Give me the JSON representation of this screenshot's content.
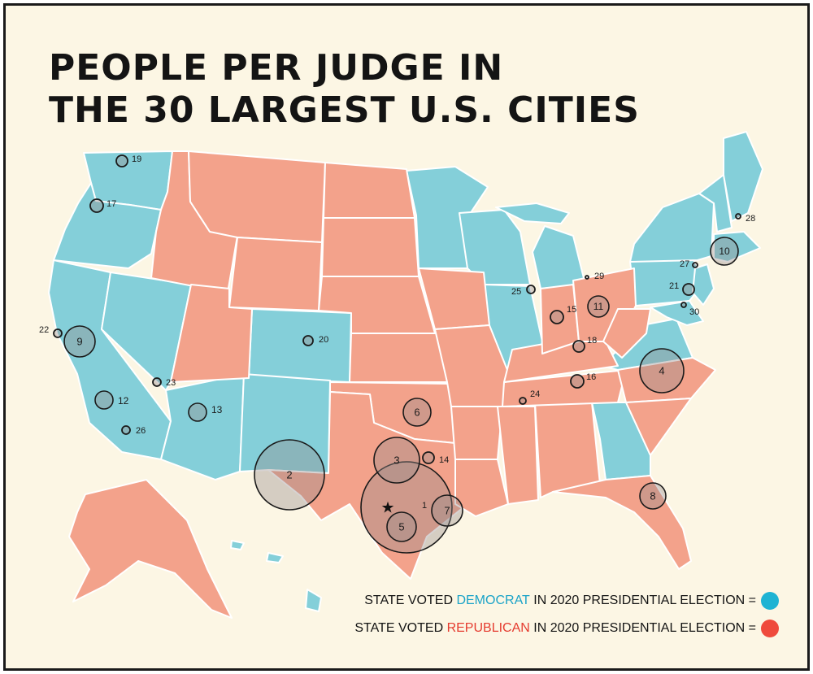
{
  "title": {
    "line1": "PEOPLE PER JUDGE IN",
    "line2": "THE 30 LARGEST U.S. CITIES"
  },
  "colors": {
    "democrat": "#84cfd9",
    "republican": "#f3a28b",
    "democrat_dot": "#1fb3d3",
    "republican_dot": "#ef4a3c",
    "democrat_text": "#1aa3c8",
    "republican_text": "#e53b2f"
  },
  "legend": {
    "democrat": {
      "prefix": "STATE VOTED ",
      "party": "DEMOCRAT",
      "suffix": " IN 2020 PRESIDENTIAL ELECTION ="
    },
    "republican": {
      "prefix": "STATE VOTED ",
      "party": "REPUBLICAN",
      "suffix": " IN 2020 PRESIDENTIAL ELECTION ="
    }
  },
  "cities": [
    {
      "rank": "1",
      "party": "republican",
      "star": true
    },
    {
      "rank": "2",
      "party": "republican"
    },
    {
      "rank": "3",
      "party": "republican"
    },
    {
      "rank": "4",
      "party": "republican"
    },
    {
      "rank": "5",
      "party": "republican"
    },
    {
      "rank": "6",
      "party": "republican"
    },
    {
      "rank": "7",
      "party": "republican"
    },
    {
      "rank": "8",
      "party": "republican"
    },
    {
      "rank": "9",
      "party": "democrat"
    },
    {
      "rank": "10",
      "party": "democrat"
    },
    {
      "rank": "11",
      "party": "republican"
    },
    {
      "rank": "12",
      "party": "democrat"
    },
    {
      "rank": "13",
      "party": "democrat"
    },
    {
      "rank": "14",
      "party": "republican"
    },
    {
      "rank": "15",
      "party": "republican"
    },
    {
      "rank": "16",
      "party": "republican"
    },
    {
      "rank": "17",
      "party": "democrat"
    },
    {
      "rank": "18",
      "party": "republican"
    },
    {
      "rank": "19",
      "party": "democrat"
    },
    {
      "rank": "20",
      "party": "democrat"
    },
    {
      "rank": "21",
      "party": "democrat"
    },
    {
      "rank": "22",
      "party": "democrat"
    },
    {
      "rank": "23",
      "party": "democrat"
    },
    {
      "rank": "24",
      "party": "republican"
    },
    {
      "rank": "25",
      "party": "democrat"
    },
    {
      "rank": "26",
      "party": "democrat"
    },
    {
      "rank": "27",
      "party": "democrat"
    },
    {
      "rank": "28",
      "party": "democrat"
    },
    {
      "rank": "29",
      "party": "democrat"
    },
    {
      "rank": "30",
      "party": "democrat"
    }
  ]
}
